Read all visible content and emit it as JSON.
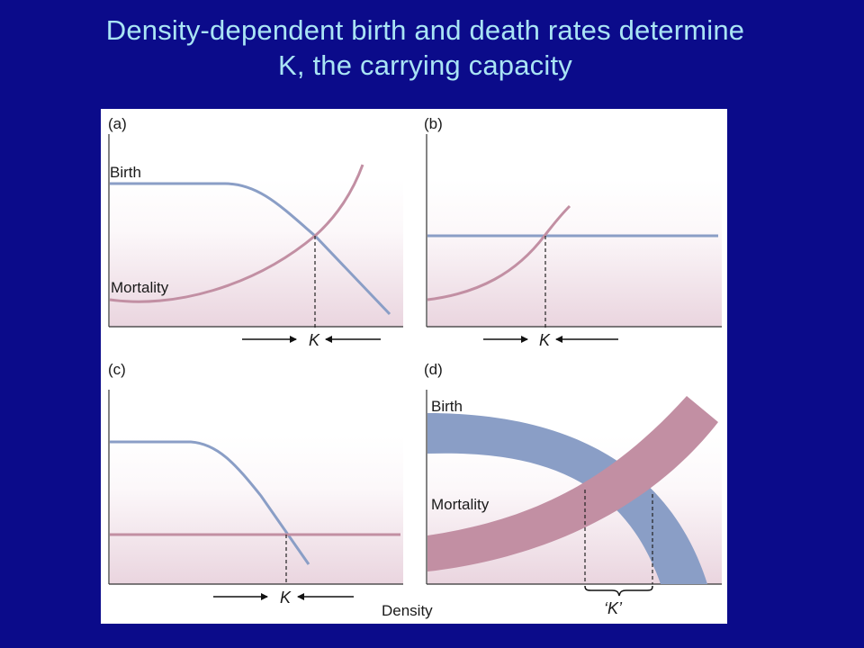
{
  "title": {
    "line1": "Density-dependent birth and death rates determine",
    "line2": "K, the carrying capacity"
  },
  "panels": {
    "a": {
      "label": "(a)",
      "birth": "Birth",
      "mortality": "Mortality",
      "k": "K"
    },
    "b": {
      "label": "(b)",
      "k": "K"
    },
    "c": {
      "label": "(c)",
      "k": "K"
    },
    "d": {
      "label": "(d)",
      "birth": "Birth",
      "mortality": "Mortality",
      "k": "‘K’"
    }
  },
  "x_axis_label": "Density",
  "colors": {
    "background": "#0b0b8a",
    "title": "#a9e4f4",
    "birth": "#8a9ec6",
    "mortality": "#c28fa3"
  }
}
